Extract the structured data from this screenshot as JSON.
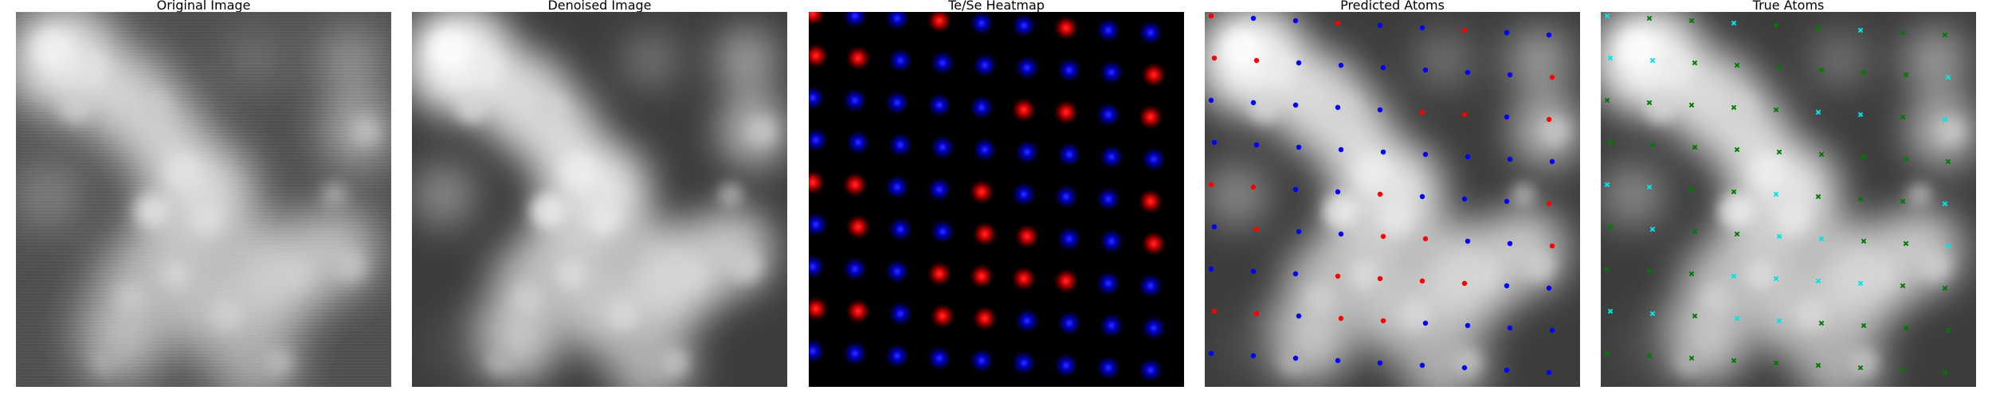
{
  "panels": [
    {
      "title": "Original Image"
    },
    {
      "title": "Denoised Image"
    },
    {
      "title": "Te/Se Heatmap"
    },
    {
      "title": "Predicted Atoms"
    },
    {
      "title": "True Atoms"
    }
  ],
  "colors": {
    "te": "#ff1a1a",
    "se": "#1a1aff",
    "predicted_te": "#ff0000",
    "predicted_se": "#0000ff",
    "true_te": "#00e5e5",
    "true_se": "#007a00"
  },
  "marker_shapes": {
    "predicted": "dot",
    "true": "x"
  }
}
